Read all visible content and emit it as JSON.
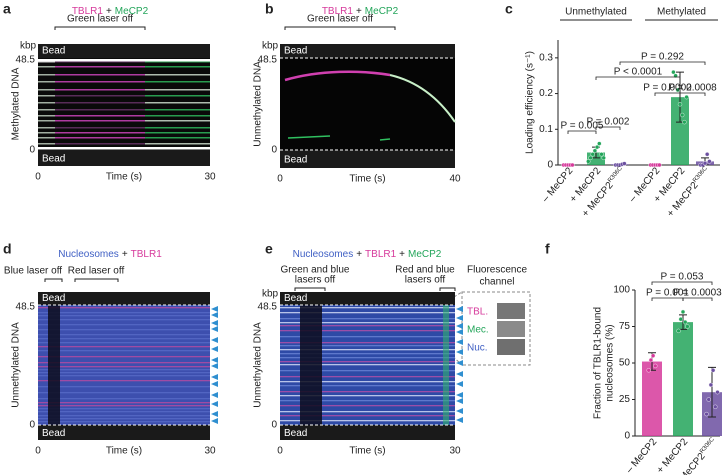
{
  "kymographs": [
    {
      "label": "a",
      "title": [
        "TBLR1",
        "+",
        "MeCP2"
      ],
      "title_colors": [
        "#d6399b",
        "#222222",
        "#23a55a"
      ],
      "annotations": [
        [
          "Green laser off"
        ]
      ],
      "beads": [
        "Bead",
        "Bead"
      ],
      "y_unit": "kbp",
      "y_top": "48.5",
      "y_bottom": "0",
      "y_label": "Methylated DNA",
      "x_ticks": [
        "0",
        "30"
      ],
      "x_label": "Time (s)"
    },
    {
      "label": "b",
      "title": [
        "TBLR1",
        "+",
        "MeCP2"
      ],
      "title_colors": [
        "#d6399b",
        "#222222",
        "#23a55a"
      ],
      "annotations": [
        [
          "Green laser off"
        ]
      ],
      "beads": [
        "Bead",
        "Bead"
      ],
      "y_unit": "kbp",
      "y_top": "48.5",
      "y_bottom": "0",
      "y_label": "Unmethylated DNA",
      "x_ticks": [
        "0",
        "40"
      ],
      "x_label": "Time (s)"
    },
    {
      "label": "d",
      "title": [
        "Nucleosomes",
        "+",
        "TBLR1"
      ],
      "title_colors": [
        "#3f5fc4",
        "#222222",
        "#d6399b"
      ],
      "annotations": [
        [
          "Blue laser off"
        ],
        [
          "Red laser off"
        ]
      ],
      "beads": [
        "Bead",
        "Bead"
      ],
      "y_top": "48.5",
      "y_bottom": "0",
      "y_label": "Unmethylated DNA",
      "x_ticks": [
        "0",
        "30"
      ],
      "x_label": "Time (s)"
    },
    {
      "label": "e",
      "title": [
        "Nucleosomes",
        "+",
        "TBLR1",
        "+",
        "MeCP2"
      ],
      "title_colors": [
        "#3f5fc4",
        "#222222",
        "#d6399b",
        "#222222",
        "#23a55a"
      ],
      "annotations": [
        [
          "Green and blue",
          "lasers off"
        ],
        [
          "Red and blue",
          "lasers off"
        ]
      ],
      "beads": [
        "Bead",
        "Bead"
      ],
      "y_unit": "kbp",
      "y_top": "48.5",
      "y_bottom": "0",
      "y_label": "Unmethylated DNA",
      "x_ticks": [
        "0",
        "30"
      ],
      "x_label": "Time (s)"
    }
  ],
  "inset": {
    "title": [
      "Fluorescence",
      "channel"
    ],
    "channels": [
      "TBL.",
      "Mec.",
      "Nuc."
    ],
    "channel_colors": [
      "#d6399b",
      "#23a55a",
      "#3f5fc4"
    ]
  },
  "chart_data": [
    {
      "type": "bar",
      "label": "c",
      "groups": [
        "Unmethylated",
        "Methylated"
      ],
      "categories": [
        "– MeCP2",
        "+ MeCP2",
        {
          "text": "+ MeCP2",
          "sup": "R306C"
        },
        "– MeCP2",
        "+ MeCP2",
        {
          "text": "+ MeCP2",
          "sup": "R306C"
        }
      ],
      "values": [
        0,
        0.035,
        0.002,
        0,
        0.19,
        0.01
      ],
      "errors": [
        0,
        0.015,
        0.002,
        0,
        0.07,
        0.01
      ],
      "points": [
        [
          0,
          0,
          0,
          0,
          0
        ],
        [
          0.01,
          0.02,
          0.03,
          0.04,
          0.05,
          0.06,
          0.03,
          0.02
        ],
        [
          0,
          0,
          0,
          0.002,
          0.004
        ],
        [
          0,
          0,
          0,
          0,
          0
        ],
        [
          0.26,
          0.25,
          0.21,
          0.17,
          0.14,
          0.12,
          0.19
        ],
        [
          0,
          0,
          0.005,
          0.03,
          0.01
        ]
      ],
      "colors": [
        "#d6399b",
        "#23a55a",
        "#6b4fa0",
        "#d6399b",
        "#23a55a",
        "#6b4fa0"
      ],
      "y_label": [
        "Loading efficiency (s⁻¹)"
      ],
      "ylim": [
        0,
        0.35
      ],
      "yticks": [
        0,
        0.1,
        0.2,
        0.3
      ],
      "annotations": [
        "P = 0.005",
        "P = 0.002",
        "P < 0.0001",
        "P = 0.0002",
        "P = 0.0008",
        "P = 0.292"
      ]
    },
    {
      "type": "bar",
      "label": "f",
      "categories": [
        "– MeCP2",
        "+ MeCP2",
        {
          "text": "+ MeCP2",
          "sup": "R306C"
        }
      ],
      "values": [
        51,
        78,
        30
      ],
      "errors": [
        6,
        5,
        17
      ],
      "points": [
        [
          45,
          52,
          55,
          48
        ],
        [
          72,
          80,
          85,
          78,
          75
        ],
        [
          15,
          25,
          35,
          45,
          20,
          30
        ]
      ],
      "colors": [
        "#d6399b",
        "#23a55a",
        "#6b4fa0"
      ],
      "y_label": [
        "Fraction of TBLR1-bound",
        "nucleosomes (%)"
      ],
      "ylim": [
        0,
        100
      ],
      "yticks": [
        0,
        25,
        50,
        75,
        100
      ],
      "annotations": [
        "P = 0.053",
        "P = 0.001",
        "P = 0.0003"
      ]
    }
  ]
}
